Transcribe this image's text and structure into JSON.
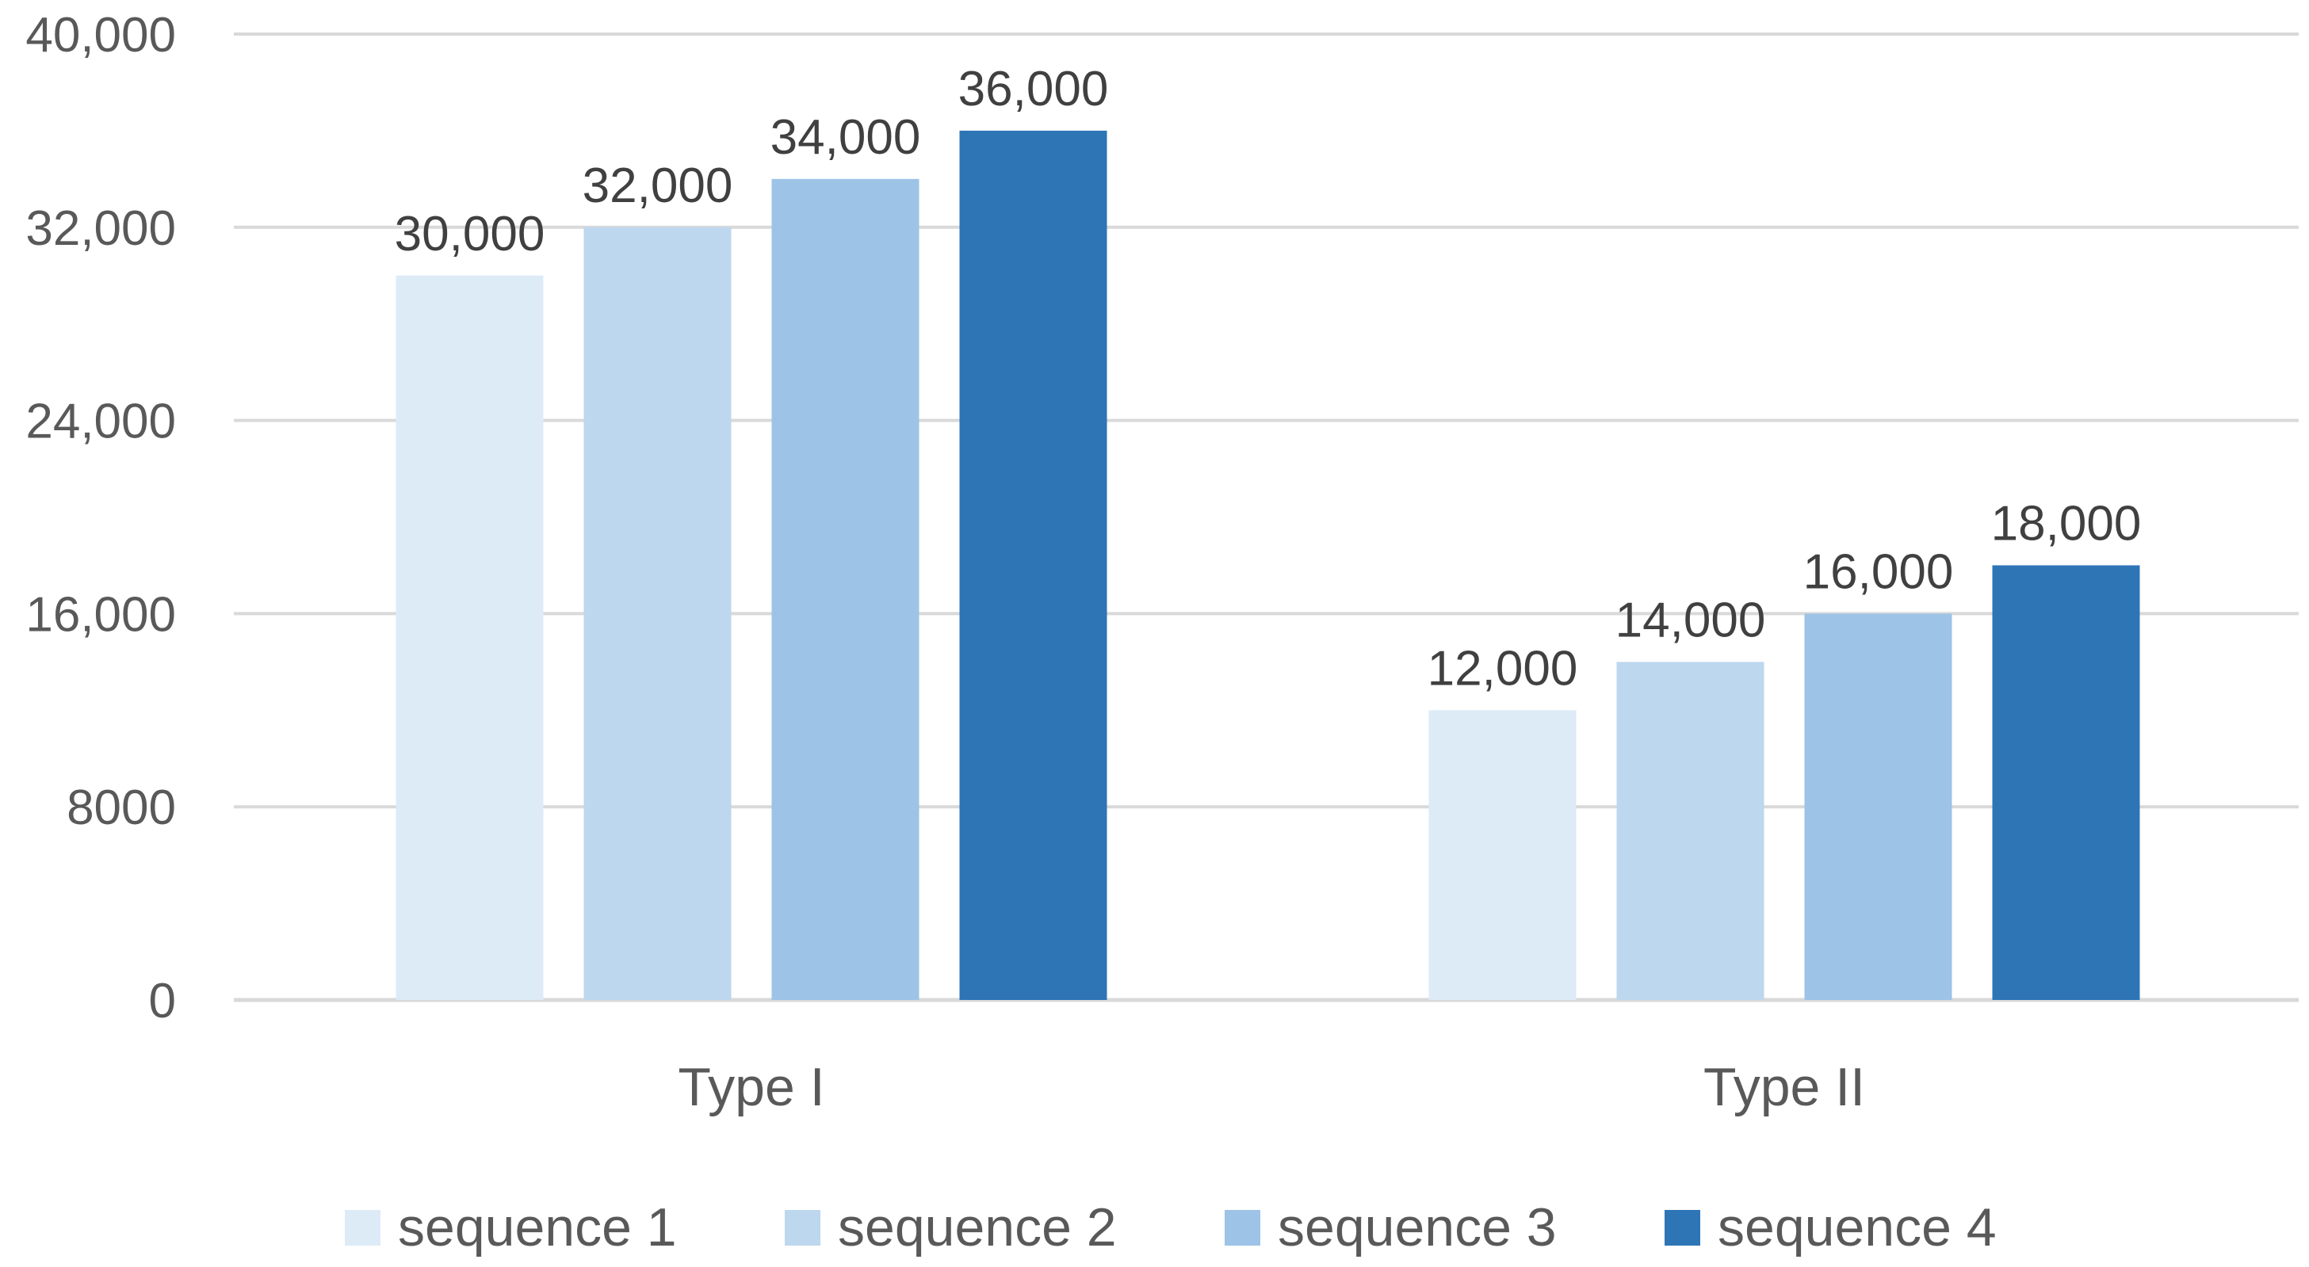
{
  "chart_data": {
    "type": "bar",
    "categories": [
      "Type I",
      "Type II"
    ],
    "series": [
      {
        "name": "sequence 1",
        "values": [
          30000,
          12000
        ],
        "color": "#ddebf7"
      },
      {
        "name": "sequence 2",
        "values": [
          32000,
          14000
        ],
        "color": "#bdd7ee"
      },
      {
        "name": "sequence 3",
        "values": [
          34000,
          16000
        ],
        "color": "#9dc3e6"
      },
      {
        "name": "sequence 4",
        "values": [
          36000,
          18000
        ],
        "color": "#2e75b6"
      }
    ],
    "data_labels": [
      [
        "30,000",
        "12,000"
      ],
      [
        "32,000",
        "14,000"
      ],
      [
        "34,000",
        "16,000"
      ],
      [
        "36,000",
        "18,000"
      ]
    ],
    "yticks": [
      0,
      8000,
      16000,
      24000,
      32000,
      40000
    ],
    "ytick_labels": [
      "0",
      "8000",
      "16,000",
      "24,000",
      "32,000",
      "40,000"
    ],
    "ylim": [
      0,
      40000
    ],
    "title": "",
    "xlabel": "",
    "ylabel": "",
    "grid": true,
    "legend_position": "bottom"
  }
}
